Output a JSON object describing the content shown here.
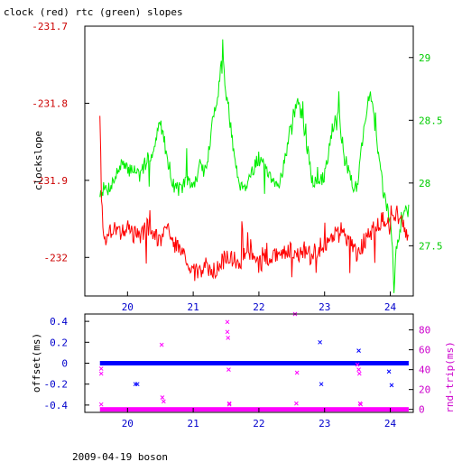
{
  "title": "clock (red) rtc (green) slopes",
  "footer": "2009-04-19 boson",
  "colors": {
    "clock": "#ff0000",
    "rtc": "#00ee00",
    "offset": "#0000ff",
    "rndtrip": "#ff00ff",
    "frame": "#000000"
  },
  "chart_data": [
    {
      "type": "line",
      "title": "clock (red) rtc (green) slopes",
      "xlabel": "",
      "ylabel": "clockslope",
      "y2label": "",
      "xlim": [
        19.35,
        24.35
      ],
      "ylim": [
        -232.05,
        -231.7
      ],
      "y2lim": [
        27.1,
        29.25
      ],
      "x_ticks": [
        "20",
        "21",
        "22",
        "23",
        "24"
      ],
      "y_ticks": [
        "-231.7",
        "-231.8",
        "-231.9",
        "-232"
      ],
      "y2_ticks": [
        "29",
        "28.5",
        "28",
        "27.5"
      ],
      "grid": false,
      "series": [
        {
          "name": "clock",
          "axis": "left",
          "color": "#ff0000",
          "x": [
            19.58,
            19.6,
            19.65,
            19.7,
            19.8,
            19.9,
            20.0,
            20.1,
            20.2,
            20.3,
            20.4,
            20.5,
            20.6,
            20.7,
            20.8,
            20.9,
            21.0,
            21.1,
            21.2,
            21.3,
            21.4,
            21.5,
            21.6,
            21.7,
            21.8,
            21.9,
            22.0,
            22.1,
            22.2,
            22.3,
            22.4,
            22.5,
            22.6,
            22.7,
            22.8,
            22.9,
            23.0,
            23.1,
            23.2,
            23.3,
            23.4,
            23.5,
            23.6,
            23.7,
            23.8,
            23.9,
            24.0,
            24.1,
            24.2,
            24.28
          ],
          "y": [
            -231.81,
            -231.92,
            -231.98,
            -231.97,
            -231.96,
            -231.97,
            -231.96,
            -231.97,
            -231.97,
            -231.96,
            -231.97,
            -231.98,
            -231.96,
            -231.98,
            -231.99,
            -232.0,
            -232.02,
            -232.02,
            -232.01,
            -232.02,
            -232.01,
            -232.0,
            -232.0,
            -232.01,
            -231.99,
            -232.0,
            -232.01,
            -232.0,
            -232.0,
            -232.0,
            -231.99,
            -231.99,
            -232.0,
            -231.99,
            -232.0,
            -231.99,
            -231.98,
            -231.98,
            -231.96,
            -231.97,
            -231.98,
            -232.0,
            -231.98,
            -231.97,
            -231.96,
            -231.95,
            -231.96,
            -231.94,
            -231.96,
            -231.97
          ]
        },
        {
          "name": "rtc",
          "axis": "right",
          "color": "#00ee00",
          "x": [
            19.58,
            19.62,
            19.7,
            19.8,
            19.9,
            20.0,
            20.1,
            20.2,
            20.3,
            20.4,
            20.5,
            20.6,
            20.7,
            20.8,
            20.9,
            21.0,
            21.1,
            21.2,
            21.3,
            21.4,
            21.45,
            21.5,
            21.55,
            21.6,
            21.7,
            21.8,
            21.9,
            22.0,
            22.1,
            22.2,
            22.3,
            22.4,
            22.5,
            22.6,
            22.7,
            22.8,
            22.9,
            23.0,
            23.1,
            23.2,
            23.3,
            23.4,
            23.45,
            23.5,
            23.6,
            23.7,
            23.8,
            23.9,
            24.0,
            24.05,
            24.1,
            24.2,
            24.28
          ],
          "y": [
            27.92,
            27.95,
            27.95,
            28.03,
            28.15,
            28.1,
            28.12,
            28.05,
            28.2,
            28.25,
            28.5,
            28.22,
            27.98,
            27.95,
            28.02,
            27.97,
            28.12,
            28.1,
            28.5,
            28.8,
            29.1,
            28.7,
            28.55,
            28.3,
            28.0,
            27.98,
            28.1,
            28.2,
            28.1,
            28.0,
            27.98,
            28.2,
            28.5,
            28.65,
            28.4,
            28.05,
            27.98,
            28.05,
            28.4,
            28.6,
            28.2,
            28.05,
            27.95,
            28.0,
            28.45,
            28.75,
            28.3,
            27.9,
            27.7,
            27.3,
            27.5,
            27.8,
            27.75
          ]
        }
      ]
    },
    {
      "type": "scatter",
      "xlabel": "",
      "ylabel": "offset(ms)",
      "y2label": "rnd-trip(ms)",
      "xlim": [
        19.35,
        24.35
      ],
      "ylim": [
        -0.47,
        0.47
      ],
      "y2lim": [
        -3,
        96
      ],
      "x_ticks": [
        "20",
        "21",
        "22",
        "23",
        "24"
      ],
      "y_ticks": [
        "0.4",
        "0.2",
        "0",
        "-0.2",
        "-0.4"
      ],
      "y2_ticks": [
        "80",
        "60",
        "40",
        "20",
        "0"
      ],
      "grid": false,
      "series": [
        {
          "name": "offset",
          "axis": "left",
          "color": "#0000ff",
          "baseline": 0.0,
          "x": [
            20.12,
            20.15,
            22.93,
            22.95,
            23.52,
            23.98,
            24.02
          ],
          "y": [
            -0.2,
            -0.2,
            0.2,
            -0.2,
            0.12,
            -0.08,
            -0.21
          ]
        },
        {
          "name": "rnd-trip",
          "axis": "right",
          "color": "#ff00ff",
          "baseline": 0.0,
          "x": [
            19.6,
            19.6,
            19.6,
            20.52,
            20.53,
            20.55,
            21.52,
            21.52,
            21.53,
            21.54,
            21.55,
            21.55,
            22.55,
            22.57,
            22.58,
            23.5,
            23.52,
            23.53,
            23.54,
            23.55
          ],
          "y": [
            41,
            36,
            5,
            65,
            12,
            8,
            88,
            78,
            72,
            40,
            6,
            5,
            96,
            6,
            37,
            45,
            40,
            36,
            6,
            5
          ]
        }
      ]
    }
  ]
}
